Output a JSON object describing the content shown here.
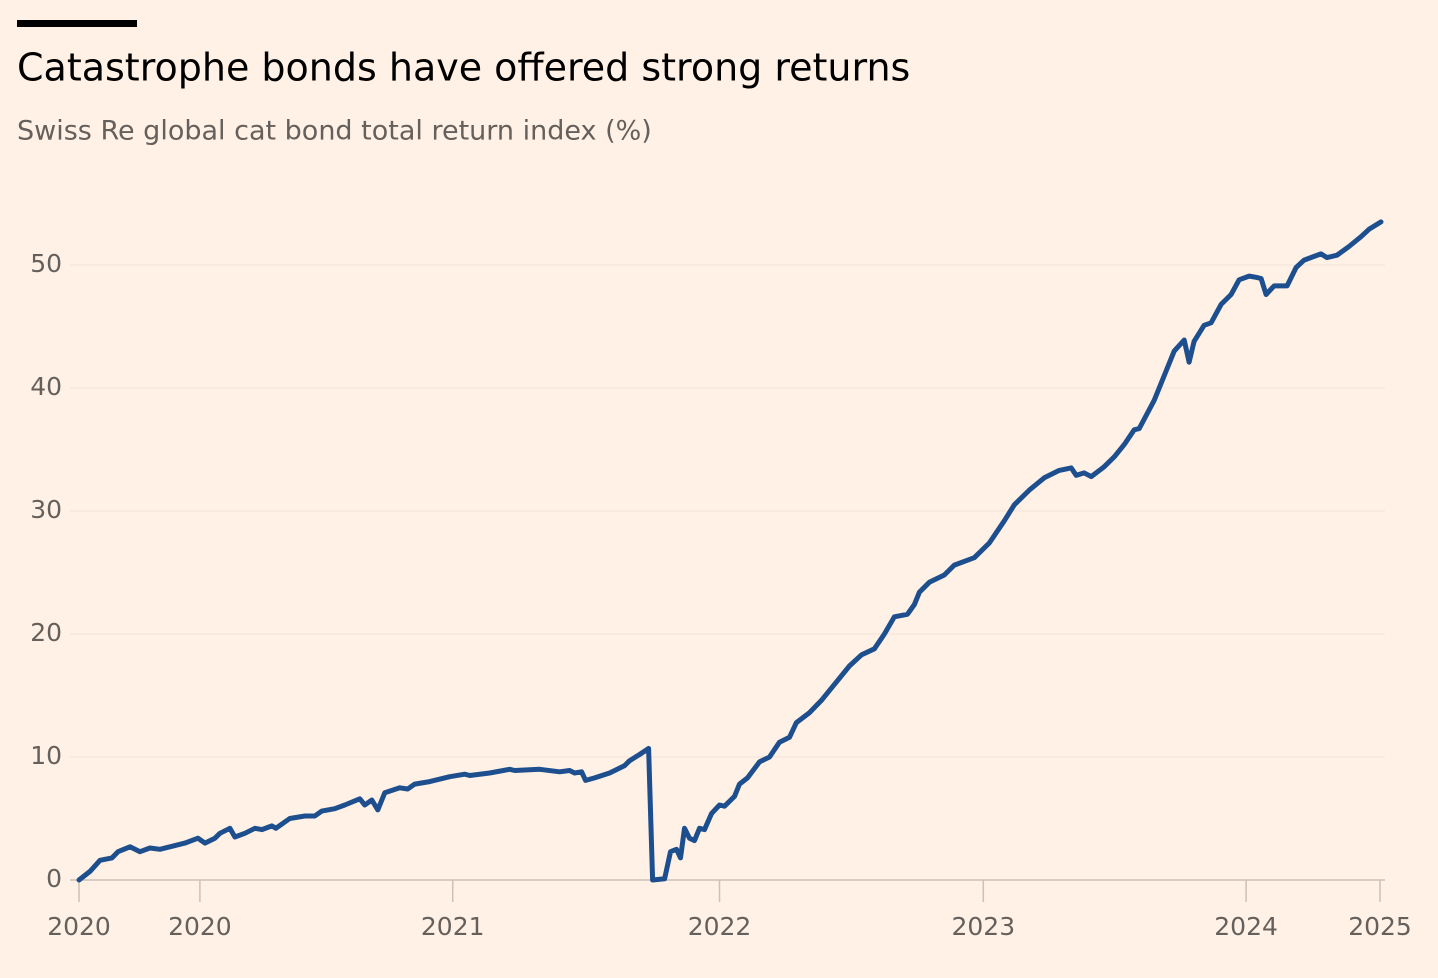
{
  "chart_data": {
    "type": "line",
    "title": "Catastrophe bonds have offered strong returns",
    "subtitle": "Swiss Re global cat bond total return index (%)",
    "x": [
      0,
      2.2,
      4.2,
      6.6,
      7.8,
      10.2,
      12.2,
      14.2,
      16.2,
      19.2,
      21.2,
      23.8,
      25.2,
      27.2,
      28.2,
      30.2,
      31.2,
      33.2,
      35.2,
      36.6,
      38.6,
      39.4,
      42.2,
      45.2,
      47.2,
      48.6,
      51.2,
      53.2,
      56.2,
      57.2,
      58.6,
      59.8,
      61.2,
      64.2,
      65.8,
      67.2,
      70.2,
      74.2,
      77.2,
      78.2,
      82.2,
      86.2,
      87.2,
      92.2,
      96.2,
      98.2,
      99.2,
      100.6,
      101.4,
      103.2,
      106.2,
      109.2,
      110.2,
      112.2,
      114,
      114.8,
      117.2,
      118.4,
      119.6,
      120.4,
      121.2,
      122.2,
      123.2,
      124.2,
      125.2,
      126.6,
      128.2,
      129.2,
      131.2,
      132.2,
      133.8,
      136.2,
      138.2,
      140.2,
      142.2,
      143.6,
      146.2,
      148.6,
      150.2,
      152.2,
      154.2,
      156.6,
      159.2,
      161.2,
      163.2,
      165.8,
      167.2,
      168.2,
      170.2,
      173.2,
      175.2,
      179.2,
      182.2,
      185.2,
      187.2,
      190.2,
      193.2,
      196.2,
      198.6,
      199.6,
      201.2,
      202.6,
      205.2,
      207.2,
      209.2,
      211.2,
      212.2,
      215.2,
      219.2,
      221.2,
      222.2,
      223.2,
      225.2,
      226.6,
      228.6,
      230.6,
      232.2,
      234.2,
      235.6,
      236.6,
      237.6,
      239.2,
      241.8,
      243.6,
      245.2,
      247.2,
      248.6,
      249.8,
      251.8,
      254.2,
      256.6,
      258.2,
      260.6
    ],
    "series": [
      {
        "name": "Swiss Re global cat bond total return index",
        "color": "#1d4f8f",
        "values": [
          0,
          0.7,
          1.6,
          1.8,
          2.3,
          2.7,
          2.3,
          2.6,
          2.5,
          2.8,
          3.0,
          3.4,
          3.0,
          3.4,
          3.8,
          4.2,
          3.5,
          3.8,
          4.2,
          4.1,
          4.4,
          4.2,
          5.0,
          5.2,
          5.2,
          5.6,
          5.8,
          6.1,
          6.6,
          6.1,
          6.5,
          5.7,
          7.1,
          7.5,
          7.4,
          7.8,
          8.0,
          8.4,
          8.6,
          8.5,
          8.7,
          9.0,
          8.9,
          9.0,
          8.8,
          8.9,
          8.7,
          8.8,
          8.1,
          8.3,
          8.7,
          9.3,
          9.7,
          10.2,
          10.7,
          0,
          0.1,
          2.3,
          2.5,
          1.8,
          4.2,
          3.4,
          3.2,
          4.2,
          4.1,
          5.4,
          6.1,
          6.0,
          6.8,
          7.8,
          8.3,
          9.6,
          10.0,
          11.2,
          11.6,
          12.8,
          13.6,
          14.6,
          15.4,
          16.4,
          17.4,
          18.3,
          18.8,
          20.0,
          21.4,
          21.6,
          22.4,
          23.4,
          24.2,
          24.8,
          25.6,
          26.2,
          27.4,
          29.2,
          30.5,
          31.7,
          32.7,
          33.3,
          33.5,
          32.9,
          33.1,
          32.8,
          33.6,
          34.4,
          35.4,
          36.6,
          36.7,
          39.0,
          43.0,
          43.9,
          42.1,
          43.8,
          45.1,
          45.3,
          46.8,
          47.6,
          48.8,
          49.1,
          49.0,
          48.9,
          47.6,
          48.3,
          48.3,
          49.8,
          50.4,
          50.7,
          50.9,
          50.6,
          50.8,
          51.5,
          52.3,
          52.9,
          53.5
        ]
      }
    ],
    "xlim": [
      0,
      260.6
    ],
    "xticks": [
      {
        "value": 0,
        "label": "2020"
      },
      {
        "value": 24.2,
        "label": "2020"
      },
      {
        "value": 74.8,
        "label": "2021"
      },
      {
        "value": 128.2,
        "label": "2022"
      },
      {
        "value": 181,
        "label": "2023"
      },
      {
        "value": 233.6,
        "label": "2024"
      },
      {
        "value": 260.4,
        "label": "2025"
      }
    ],
    "ylim": [
      0,
      55
    ],
    "yticks": [
      0,
      10,
      20,
      30,
      40,
      50
    ],
    "grid": true
  }
}
